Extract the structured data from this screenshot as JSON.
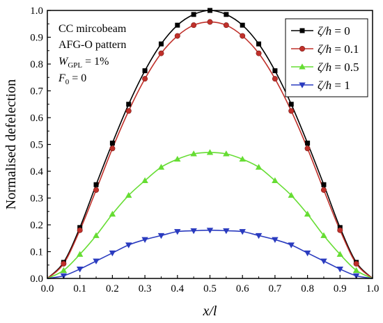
{
  "chart_data": {
    "type": "line",
    "xlabel": "x/l",
    "ylabel": "Normalised defelection",
    "xlim": [
      0.0,
      1.0
    ],
    "ylim": [
      0.0,
      1.0
    ],
    "xticks": [
      "0.0",
      "0.1",
      "0.2",
      "0.3",
      "0.4",
      "0.5",
      "0.6",
      "0.7",
      "0.8",
      "0.9",
      "1.0"
    ],
    "yticks": [
      "0.0",
      "0.1",
      "0.2",
      "0.3",
      "0.4",
      "0.5",
      "0.6",
      "0.7",
      "0.8",
      "0.9",
      "1.0"
    ],
    "grid": false,
    "legend_position": "top-right",
    "annotations": [
      {
        "text": "CC mircobeam"
      },
      {
        "text": "AFG-O pattern"
      },
      {
        "main": "W",
        "sub": "GPL",
        "rest": " = 1%"
      },
      {
        "main": "F",
        "sub": "0",
        "rest": " = 0"
      }
    ],
    "x": [
      0.05,
      0.1,
      0.15,
      0.2,
      0.25,
      0.3,
      0.35,
      0.4,
      0.45,
      0.5,
      0.55,
      0.6,
      0.65,
      0.7,
      0.75,
      0.8,
      0.85,
      0.9,
      0.95
    ],
    "series": [
      {
        "name": "ζ/h = 0",
        "label_var": "ζ/h",
        "label_val": " = 0",
        "color": "#000000",
        "marker": "square",
        "values": [
          0.06,
          0.19,
          0.35,
          0.505,
          0.65,
          0.775,
          0.875,
          0.945,
          0.985,
          1.0,
          0.985,
          0.945,
          0.875,
          0.775,
          0.65,
          0.505,
          0.35,
          0.19,
          0.06
        ]
      },
      {
        "name": "ζ/h = 0.1",
        "label_var": "ζ/h",
        "label_val": " = 0.1",
        "color": "#c0302a",
        "marker": "circle",
        "values": [
          0.055,
          0.18,
          0.33,
          0.485,
          0.625,
          0.745,
          0.84,
          0.905,
          0.945,
          0.957,
          0.945,
          0.905,
          0.84,
          0.745,
          0.625,
          0.485,
          0.33,
          0.18,
          0.055
        ]
      },
      {
        "name": "ζ/h = 0.5",
        "label_var": "ζ/h",
        "label_val": " = 0.5",
        "color": "#66dd33",
        "marker": "triangle-up",
        "values": [
          0.03,
          0.09,
          0.16,
          0.24,
          0.31,
          0.365,
          0.415,
          0.445,
          0.465,
          0.47,
          0.465,
          0.445,
          0.415,
          0.365,
          0.31,
          0.24,
          0.16,
          0.09,
          0.03
        ]
      },
      {
        "name": "ζ/h = 1",
        "label_var": "ζ/h",
        "label_val": " = 1",
        "color": "#2a3bbf",
        "marker": "triangle-down",
        "values": [
          0.01,
          0.035,
          0.065,
          0.095,
          0.125,
          0.145,
          0.16,
          0.175,
          0.178,
          0.18,
          0.178,
          0.175,
          0.16,
          0.145,
          0.125,
          0.095,
          0.065,
          0.035,
          0.01
        ]
      }
    ]
  }
}
